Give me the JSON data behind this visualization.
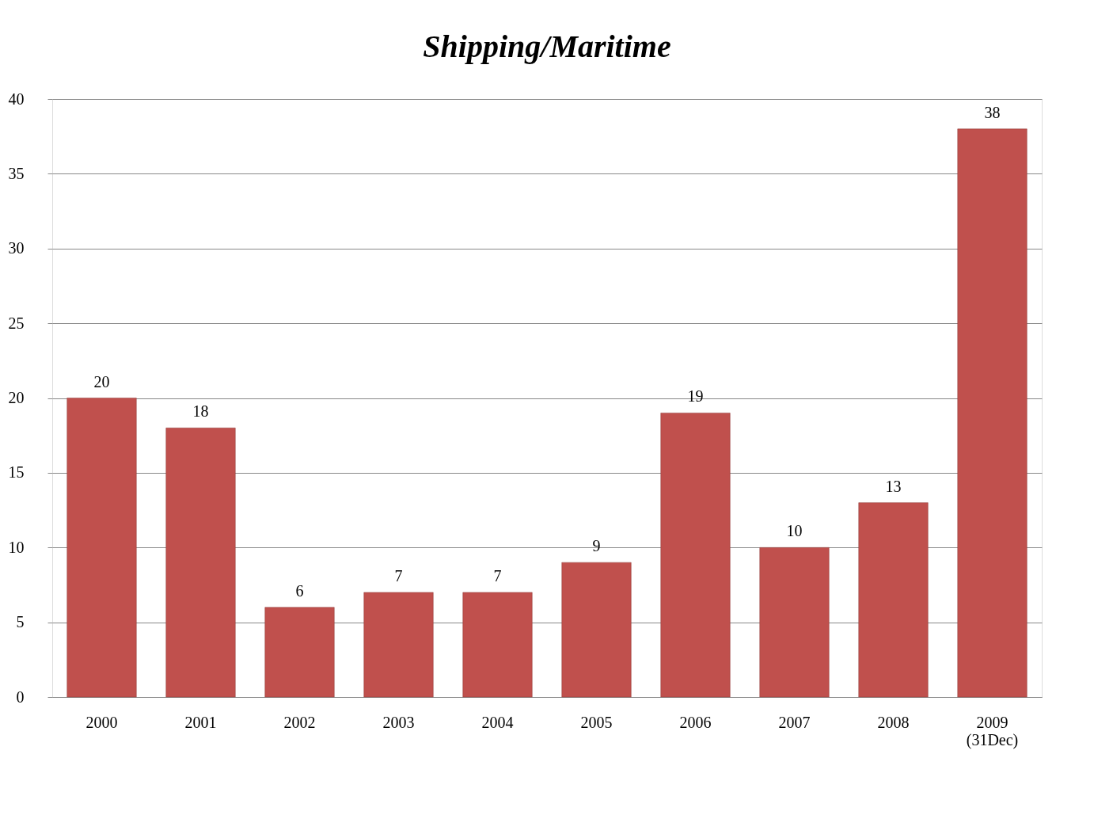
{
  "chart_data": {
    "type": "bar",
    "title": "Shipping/Maritime",
    "categories": [
      "2000",
      "2001",
      "2002",
      "2003",
      "2004",
      "2005",
      "2006",
      "2007",
      "2008",
      "2009\n(31Dec)"
    ],
    "values": [
      20,
      18,
      6,
      7,
      7,
      9,
      19,
      10,
      13,
      38
    ],
    "color": "#c0504d",
    "ylim": [
      0,
      40
    ],
    "yticks": [
      0,
      5,
      10,
      15,
      20,
      25,
      30,
      35,
      40
    ],
    "grid": "y",
    "data_labels": true
  }
}
